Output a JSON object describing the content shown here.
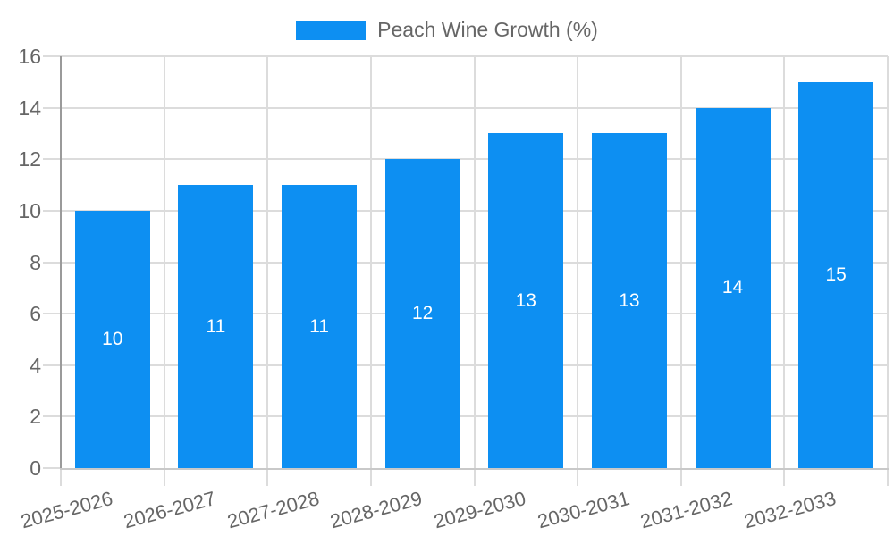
{
  "chart_data": {
    "type": "bar",
    "title": "",
    "legend": {
      "label": "Peach Wine Growth (%)",
      "position": "top-center"
    },
    "categories": [
      "2025-2026",
      "2026-2027",
      "2027-2028",
      "2028-2029",
      "2029-2030",
      "2030-2031",
      "2031-2032",
      "2032-2033"
    ],
    "values": [
      10,
      11,
      11,
      12,
      13,
      13,
      14,
      15
    ],
    "bar_value_labels": [
      "10",
      "11",
      "11",
      "12",
      "13",
      "13",
      "14",
      "15"
    ],
    "xlabel": "",
    "ylabel": "",
    "ylim": [
      0,
      16
    ],
    "yticks": [
      0,
      2,
      4,
      6,
      8,
      10,
      12,
      14,
      16
    ],
    "x_label_rotation_deg": -15,
    "grid": true,
    "colors": {
      "bar": "#0d8ff2",
      "grid": "#dcdcdc",
      "x_axis": "#c9c9c9",
      "y_axis": "#9a9a9a",
      "text": "#666666",
      "value_label": "#ffffff",
      "background": "#ffffff"
    }
  }
}
